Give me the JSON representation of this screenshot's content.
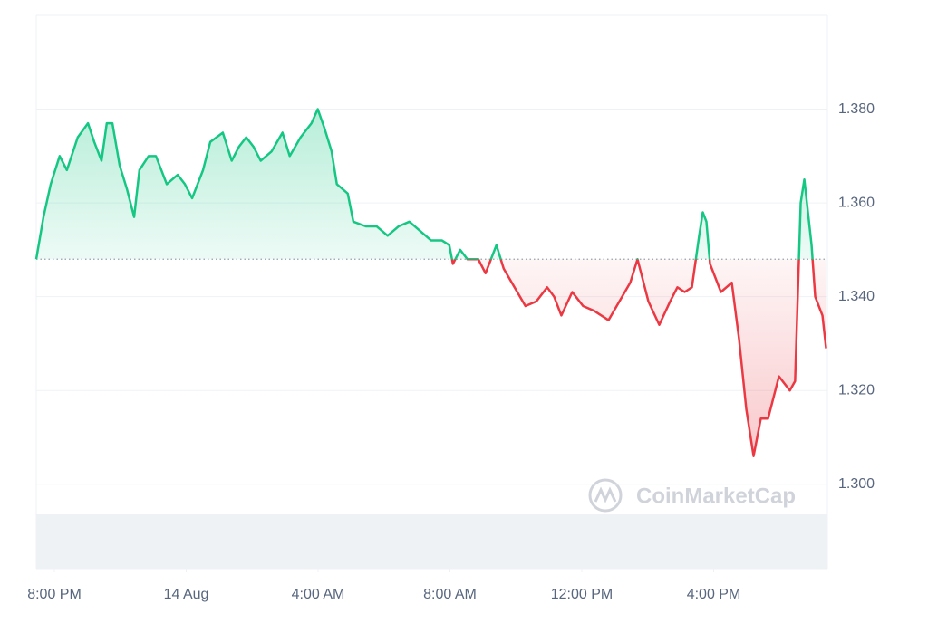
{
  "chart_data": {
    "type": "line",
    "watermark": "CoinMarketCap",
    "x": [
      -0.55,
      -0.33,
      -0.11,
      0.16,
      0.38,
      0.71,
      1.02,
      1.21,
      1.43,
      1.59,
      1.76,
      1.98,
      2.2,
      2.42,
      2.58,
      2.86,
      3.08,
      3.41,
      3.74,
      3.96,
      4.18,
      4.51,
      4.73,
      5.11,
      5.38,
      5.6,
      5.82,
      6.04,
      6.26,
      6.59,
      6.92,
      7.14,
      7.47,
      7.8,
      7.99,
      8.19,
      8.41,
      8.57,
      8.9,
      9.07,
      9.45,
      9.78,
      10.11,
      10.44,
      10.77,
      11.1,
      11.43,
      11.76,
      11.98,
      12.09,
      12.31,
      12.53,
      12.86,
      13.08,
      13.41,
      13.63,
      13.96,
      14.29,
      14.62,
      14.95,
      15.16,
      15.38,
      15.71,
      16.04,
      16.37,
      16.81,
      17.14,
      17.47,
      17.69,
      18.02,
      18.35,
      18.68,
      18.9,
      19.12,
      19.34,
      19.56,
      19.67,
      19.78,
      19.89,
      20.22,
      20.55,
      20.77,
      20.99,
      21.21,
      21.43,
      21.65,
      21.98,
      22.31,
      22.47,
      22.64,
      22.75,
      22.97,
      23.08,
      23.3,
      23.41
    ],
    "values": [
      1.348,
      1.357,
      1.364,
      1.37,
      1.367,
      1.374,
      1.377,
      1.373,
      1.369,
      1.377,
      1.377,
      1.368,
      1.363,
      1.357,
      1.367,
      1.37,
      1.37,
      1.364,
      1.366,
      1.364,
      1.361,
      1.367,
      1.373,
      1.375,
      1.369,
      1.372,
      1.374,
      1.372,
      1.369,
      1.371,
      1.375,
      1.37,
      1.374,
      1.377,
      1.38,
      1.376,
      1.371,
      1.364,
      1.362,
      1.356,
      1.355,
      1.355,
      1.353,
      1.355,
      1.356,
      1.354,
      1.352,
      1.352,
      1.351,
      1.347,
      1.35,
      1.348,
      1.348,
      1.345,
      1.351,
      1.346,
      1.342,
      1.338,
      1.339,
      1.342,
      1.34,
      1.336,
      1.341,
      1.338,
      1.337,
      1.335,
      1.339,
      1.343,
      1.348,
      1.339,
      1.334,
      1.339,
      1.342,
      1.341,
      1.342,
      1.353,
      1.358,
      1.356,
      1.347,
      1.341,
      1.343,
      1.331,
      1.316,
      1.306,
      1.314,
      1.314,
      1.323,
      1.32,
      1.322,
      1.36,
      1.365,
      1.351,
      1.34,
      1.336,
      1.329
    ],
    "baseline": 1.348,
    "colors": {
      "above": "#16c784",
      "below": "#ea3943"
    },
    "xlim": [
      -0.55,
      23.45
    ],
    "xticks": [
      {
        "value": 0,
        "label": "8:00 PM"
      },
      {
        "value": 4,
        "label": "14 Aug"
      },
      {
        "value": 8,
        "label": "4:00 AM"
      },
      {
        "value": 12,
        "label": "8:00 AM"
      },
      {
        "value": 16,
        "label": "12:00 PM"
      },
      {
        "value": 20,
        "label": "4:00 PM"
      }
    ],
    "ylim": [
      1.282,
      1.4
    ],
    "yticks": [
      {
        "value": 1.3,
        "label": "1.300"
      },
      {
        "value": 1.32,
        "label": "1.320"
      },
      {
        "value": 1.34,
        "label": "1.340"
      },
      {
        "value": 1.36,
        "label": "1.360"
      },
      {
        "value": 1.38,
        "label": "1.380"
      }
    ],
    "grid": true
  }
}
